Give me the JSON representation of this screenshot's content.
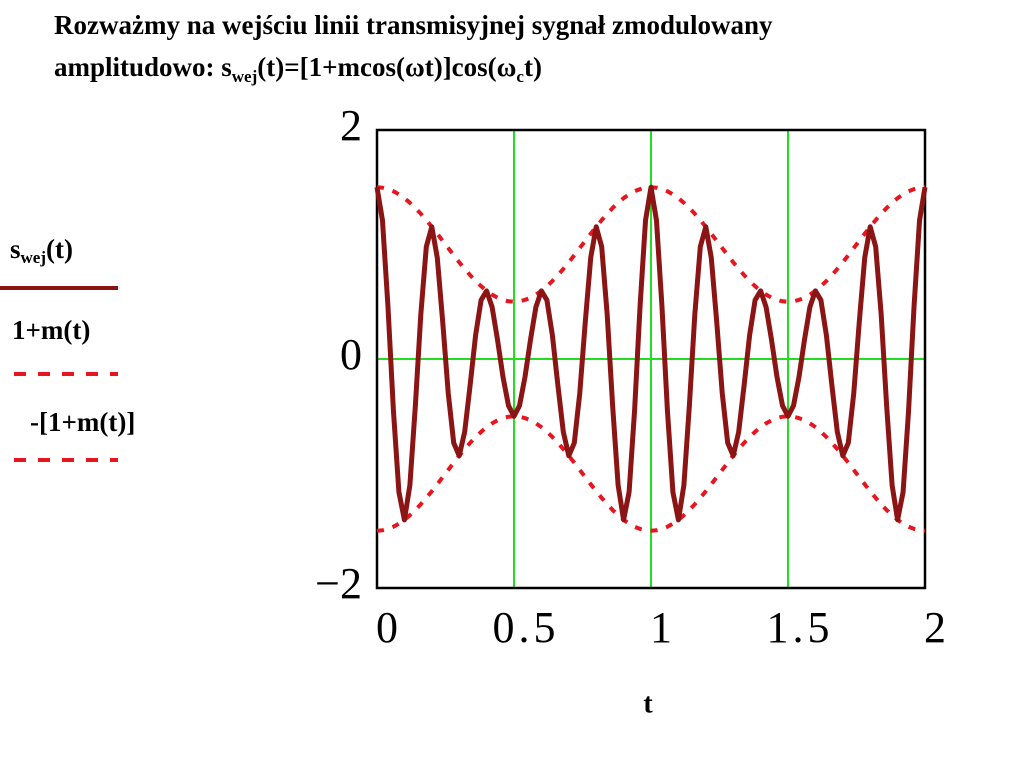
{
  "chart_data": {
    "type": "line",
    "title_parts": [
      "Rozważmy na wejściu linii transmisyjnej sygnał zmodulowany",
      "amplitudowo: s",
      "wej",
      "(t)=[1+mcos(ωt)]cos(ω",
      "c",
      "t)"
    ],
    "x_label": "t",
    "xlim": [
      0,
      2
    ],
    "ylim": [
      -2,
      2
    ],
    "xticks": [
      0,
      0.5,
      1,
      1.5,
      2
    ],
    "yticks": [
      {
        "value": -2,
        "label": "−2"
      },
      0,
      2
    ],
    "grid": true,
    "grid_color": "#22dd22",
    "x": [
      0,
      0.02,
      0.04,
      0.06,
      0.08,
      0.1,
      0.12,
      0.14,
      0.16,
      0.18,
      0.2,
      0.22,
      0.24,
      0.26,
      0.28,
      0.3,
      0.32,
      0.34,
      0.36,
      0.38,
      0.4,
      0.42,
      0.44,
      0.46,
      0.48,
      0.5,
      0.52,
      0.54,
      0.56,
      0.58,
      0.6,
      0.62,
      0.64,
      0.66,
      0.68,
      0.7,
      0.72,
      0.74,
      0.76,
      0.78,
      0.8,
      0.82,
      0.84,
      0.86,
      0.88,
      0.9,
      0.92,
      0.94,
      0.96,
      0.98,
      1,
      1.02,
      1.04,
      1.06,
      1.08,
      1.1,
      1.12,
      1.14,
      1.16,
      1.18,
      1.2,
      1.22,
      1.24,
      1.26,
      1.28,
      1.3,
      1.32,
      1.34,
      1.36,
      1.38,
      1.4,
      1.42,
      1.44,
      1.46,
      1.48,
      1.5,
      1.52,
      1.54,
      1.56,
      1.58,
      1.6,
      1.62,
      1.64,
      1.66,
      1.68,
      1.7,
      1.72,
      1.74,
      1.76,
      1.78,
      1.8,
      1.82,
      1.84,
      1.86,
      1.88,
      1.9,
      1.92,
      1.94,
      1.96,
      1.98,
      2
    ],
    "series": [
      {
        "name": [
          "s",
          "wej",
          "(t)"
        ],
        "color": "#8b1414",
        "dashed": false,
        "values": [
          1.5,
          1.21,
          0.459,
          -0.453,
          -1.163,
          -1.405,
          -1.103,
          -0.408,
          0.392,
          0.981,
          1.155,
          0.885,
          0.319,
          -0.299,
          -0.733,
          -0.845,
          -0.637,
          -0.226,
          0.21,
          0.515,
          0.595,
          0.455,
          0.165,
          -0.159,
          -0.408,
          -0.5,
          -0.408,
          -0.159,
          0.165,
          0.455,
          0.595,
          0.515,
          0.21,
          -0.226,
          -0.637,
          -0.845,
          -0.733,
          -0.299,
          0.319,
          0.885,
          1.155,
          0.981,
          0.392,
          -0.408,
          -1.103,
          -1.405,
          -1.163,
          -0.453,
          0.459,
          1.21,
          1.5,
          1.21,
          0.459,
          -0.453,
          -1.163,
          -1.405,
          -1.103,
          -0.408,
          0.392,
          0.981,
          1.155,
          0.885,
          0.319,
          -0.299,
          -0.733,
          -0.845,
          -0.637,
          -0.226,
          0.21,
          0.515,
          0.595,
          0.455,
          0.165,
          -0.159,
          -0.408,
          -0.5,
          -0.408,
          -0.159,
          0.165,
          0.455,
          0.595,
          0.515,
          0.21,
          -0.226,
          -0.637,
          -0.845,
          -0.733,
          -0.299,
          0.319,
          0.885,
          1.155,
          0.981,
          0.392,
          -0.408,
          -1.103,
          -1.405,
          -1.163,
          -0.453,
          0.459,
          1.21,
          1.5
        ]
      },
      {
        "name": [
          "1+m(t)"
        ],
        "color": "#e8141e",
        "dashed": true,
        "values": [
          1.5,
          1.496,
          1.484,
          1.465,
          1.438,
          1.405,
          1.364,
          1.319,
          1.268,
          1.213,
          1.155,
          1.094,
          1.031,
          0.969,
          0.906,
          0.845,
          0.787,
          0.732,
          0.681,
          0.636,
          0.595,
          0.562,
          0.535,
          0.516,
          0.504,
          0.5,
          0.504,
          0.516,
          0.535,
          0.562,
          0.595,
          0.636,
          0.681,
          0.732,
          0.787,
          0.845,
          0.906,
          0.969,
          1.031,
          1.094,
          1.155,
          1.213,
          1.268,
          1.319,
          1.364,
          1.405,
          1.438,
          1.465,
          1.484,
          1.496,
          1.5,
          1.496,
          1.484,
          1.465,
          1.438,
          1.405,
          1.364,
          1.319,
          1.268,
          1.213,
          1.155,
          1.094,
          1.031,
          0.969,
          0.906,
          0.845,
          0.787,
          0.732,
          0.681,
          0.636,
          0.595,
          0.562,
          0.535,
          0.516,
          0.504,
          0.5,
          0.504,
          0.516,
          0.535,
          0.562,
          0.595,
          0.636,
          0.681,
          0.732,
          0.787,
          0.845,
          0.906,
          0.969,
          1.031,
          1.094,
          1.155,
          1.213,
          1.268,
          1.319,
          1.364,
          1.405,
          1.438,
          1.465,
          1.484,
          1.496,
          1.5
        ]
      },
      {
        "name": [
          "-[1+m(t)]"
        ],
        "color": "#e8141e",
        "dashed": true,
        "values": [
          -1.5,
          -1.496,
          -1.484,
          -1.465,
          -1.438,
          -1.405,
          -1.364,
          -1.319,
          -1.268,
          -1.213,
          -1.155,
          -1.094,
          -1.031,
          -0.969,
          -0.906,
          -0.845,
          -0.787,
          -0.732,
          -0.681,
          -0.636,
          -0.595,
          -0.562,
          -0.535,
          -0.516,
          -0.504,
          -0.5,
          -0.504,
          -0.516,
          -0.535,
          -0.562,
          -0.595,
          -0.636,
          -0.681,
          -0.732,
          -0.787,
          -0.845,
          -0.906,
          -0.969,
          -1.031,
          -1.094,
          -1.155,
          -1.213,
          -1.268,
          -1.319,
          -1.364,
          -1.405,
          -1.438,
          -1.465,
          -1.484,
          -1.496,
          -1.5,
          -1.496,
          -1.484,
          -1.465,
          -1.438,
          -1.405,
          -1.364,
          -1.319,
          -1.268,
          -1.213,
          -1.155,
          -1.094,
          -1.031,
          -0.969,
          -0.906,
          -0.845,
          -0.787,
          -0.732,
          -0.681,
          -0.636,
          -0.595,
          -0.562,
          -0.535,
          -0.516,
          -0.504,
          -0.5,
          -0.504,
          -0.516,
          -0.535,
          -0.562,
          -0.595,
          -0.636,
          -0.681,
          -0.732,
          -0.787,
          -0.845,
          -0.906,
          -0.969,
          -1.031,
          -1.094,
          -1.155,
          -1.213,
          -1.268,
          -1.319,
          -1.364,
          -1.405,
          -1.438,
          -1.465,
          -1.484,
          -1.496,
          -1.5
        ]
      }
    ]
  }
}
